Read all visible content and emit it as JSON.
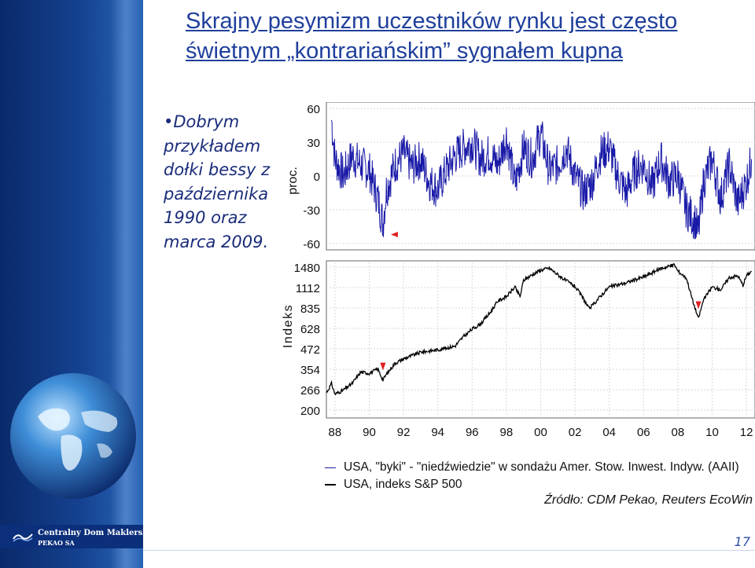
{
  "title": "Skrajny pesymizm uczestników rynku jest często świetnym „kontrariańskim” sygnałem kupna",
  "bullet": {
    "marker": "•",
    "text": "Dobrym przykładem dołki bessy z października 1990 oraz marca 2009."
  },
  "logo": {
    "line1": "Centralny Dom Maklerski",
    "line2": "PEKAO SA"
  },
  "source": "Źródło: CDM Pekao, Reuters EcoWin",
  "page_number": "17",
  "colors": {
    "bull_series": "#1a1aa8",
    "index_series": "#000000",
    "marker": "#e02020",
    "title": "#1f3f9c",
    "sidebar": "#14418f"
  },
  "chart_data": [
    {
      "type": "line",
      "ylabel": "proc.",
      "yticks": [
        "60",
        "30",
        "0",
        "-30",
        "-60"
      ],
      "ylim": [
        -60,
        60
      ],
      "x_range": [
        1987.5,
        2012.5
      ],
      "series": [
        {
          "name": "USA, \"byki\" - \"niedźwiedzie\" w sondażu Amer. Stow. Inwest. Indyw. (AAII)",
          "x": [
            1987.8,
            1988.0,
            1988.5,
            1989.0,
            1989.5,
            1990.0,
            1990.5,
            1990.8,
            1991.0,
            1991.5,
            1992.0,
            1992.5,
            1993.0,
            1993.5,
            1994.0,
            1994.5,
            1995.0,
            1995.5,
            1996.0,
            1996.5,
            1997.0,
            1997.5,
            1998.0,
            1998.5,
            1999.0,
            1999.5,
            2000.0,
            2000.5,
            2001.0,
            2001.5,
            2002.0,
            2002.5,
            2003.0,
            2003.5,
            2004.0,
            2004.5,
            2005.0,
            2005.5,
            2006.0,
            2006.5,
            2007.0,
            2007.5,
            2008.0,
            2008.5,
            2009.0,
            2009.2,
            2009.5,
            2010.0,
            2010.5,
            2011.0,
            2011.5,
            2012.0,
            2012.3
          ],
          "values": [
            50,
            15,
            0,
            18,
            10,
            5,
            -20,
            -42,
            -12,
            10,
            20,
            8,
            15,
            -5,
            -12,
            5,
            18,
            25,
            30,
            15,
            20,
            10,
            35,
            -8,
            25,
            15,
            38,
            5,
            10,
            25,
            0,
            -15,
            -5,
            20,
            25,
            0,
            -15,
            5,
            10,
            -10,
            15,
            -5,
            0,
            -30,
            -40,
            -51,
            -5,
            15,
            -20,
            10,
            -25,
            -5,
            15
          ]
        }
      ],
      "markers": [
        {
          "x": 1990.8,
          "label": "dołek bessy 1990"
        }
      ]
    },
    {
      "type": "line",
      "ylabel": "Indeks",
      "yticks": [
        "1480",
        "1112",
        "835",
        "628",
        "472",
        "354",
        "266",
        "200"
      ],
      "ylim": [
        200,
        1480
      ],
      "y_scale": "log",
      "xticks": [
        "88",
        "90",
        "92",
        "94",
        "96",
        "98",
        "00",
        "02",
        "04",
        "06",
        "08",
        "10",
        "12"
      ],
      "x_range": [
        1987.5,
        2012.5
      ],
      "series": [
        {
          "name": "USA, indeks S&P 500",
          "x": [
            1987.5,
            1987.8,
            1988.0,
            1988.5,
            1989.0,
            1989.5,
            1990.0,
            1990.5,
            1990.8,
            1991.0,
            1991.5,
            1992.0,
            1993.0,
            1994.0,
            1995.0,
            1995.5,
            1996.0,
            1996.5,
            1997.0,
            1997.5,
            1998.0,
            1998.5,
            1998.8,
            1999.0,
            1999.5,
            2000.0,
            2000.5,
            2001.0,
            2001.5,
            2002.0,
            2002.5,
            2002.8,
            2003.0,
            2003.5,
            2004.0,
            2005.0,
            2006.0,
            2007.0,
            2007.8,
            2008.0,
            2008.5,
            2008.9,
            2009.2,
            2009.5,
            2010.0,
            2010.5,
            2011.0,
            2011.5,
            2011.8,
            2012.0,
            2012.3
          ],
          "values": [
            255,
            290,
            250,
            265,
            290,
            340,
            335,
            355,
            305,
            330,
            385,
            410,
            450,
            465,
            490,
            560,
            620,
            670,
            770,
            920,
            980,
            1120,
            980,
            1230,
            1330,
            1420,
            1460,
            1330,
            1220,
            1130,
            950,
            830,
            860,
            990,
            1120,
            1190,
            1290,
            1450,
            1530,
            1400,
            1270,
            900,
            720,
            940,
            1120,
            1080,
            1280,
            1310,
            1150,
            1310,
            1400
          ]
        }
      ],
      "markers": [
        {
          "x": 1990.8,
          "label": "dołek 1990"
        },
        {
          "x": 2009.2,
          "label": "dołek 2009"
        }
      ]
    }
  ],
  "legend": [
    {
      "label": "USA, \"byki\" - \"niedźwiedzie\" w sondażu Amer. Stow. Inwest. Indyw. (AAII)",
      "color": "#1a1aa8"
    },
    {
      "label": "USA, indeks S&P 500",
      "color": "#000000"
    }
  ]
}
